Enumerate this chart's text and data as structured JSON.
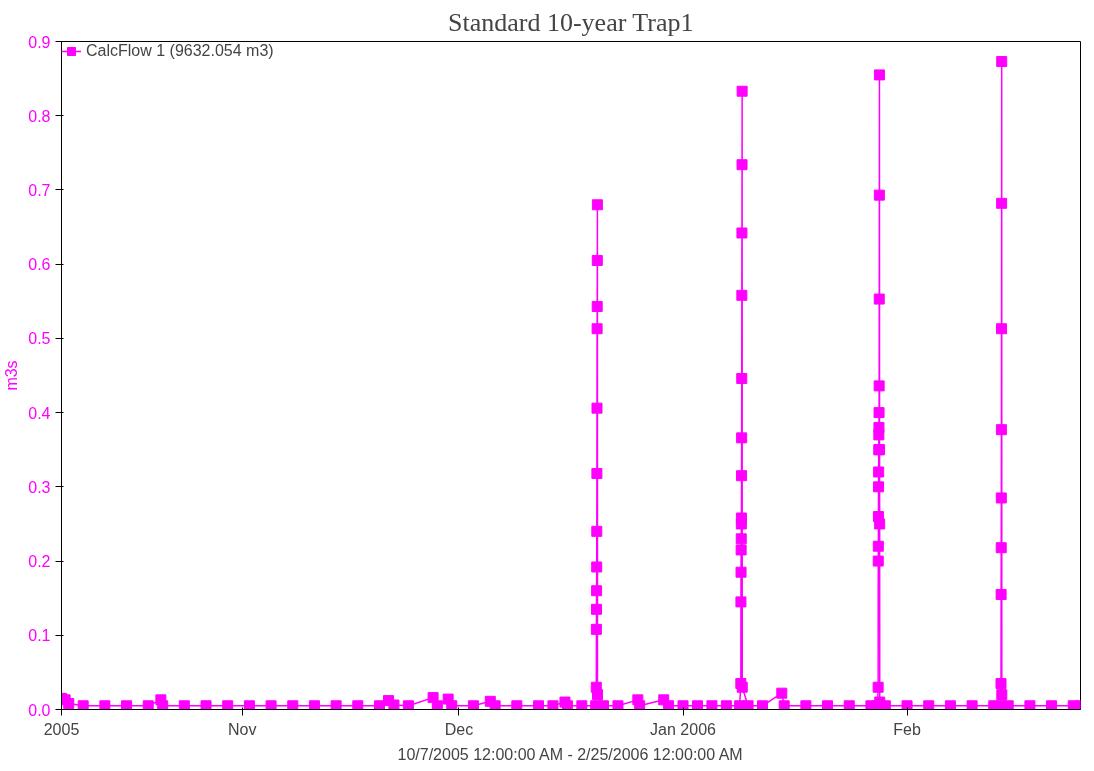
{
  "chart_data": {
    "type": "line",
    "title": "Standard 10-year Trap1",
    "xlabel": "10/7/2005 12:00:00 AM - 2/25/2006 12:00:00 AM",
    "ylabel": "m3s",
    "xlim": [
      "2005-10-07",
      "2006-02-25"
    ],
    "xticks": [
      {
        "value": "2005-10-07",
        "label": "2005"
      },
      {
        "value": "2005-11-01",
        "label": "Nov"
      },
      {
        "value": "2005-12-01",
        "label": "Dec"
      },
      {
        "value": "2006-01-01",
        "label": "Jan 2006"
      },
      {
        "value": "2006-02-01",
        "label": "Feb"
      }
    ],
    "ylim": [
      0,
      0.9
    ],
    "yticks": [
      {
        "value": 0,
        "label": "0.0"
      },
      0.1,
      0.2,
      0.3,
      0.4,
      0.5,
      0.6,
      0.7,
      0.8,
      0.9
    ],
    "grid": false,
    "legend": "top left",
    "marker": "square",
    "line_style": "solid",
    "series": [
      {
        "name": "CalcFlow 1 (9632.054 m3)",
        "color": "#ff00ff",
        "x": [
          "2005-10-07",
          "2005-10-07T12:00",
          "2005-10-08",
          "2005-10-10",
          "2005-10-13",
          "2005-10-16",
          "2005-10-19",
          "2005-10-20T18:00",
          "2005-10-21",
          "2005-10-24",
          "2005-10-27",
          "2005-10-30",
          "2005-11-02",
          "2005-11-05",
          "2005-11-08",
          "2005-11-11",
          "2005-11-14",
          "2005-11-17",
          "2005-11-20",
          "2005-11-21T06:00",
          "2005-11-22",
          "2005-11-24",
          "2005-11-27T10:00",
          "2005-11-28",
          "2005-11-29T12:00",
          "2005-11-30",
          "2005-12-03",
          "2005-12-05T08:00",
          "2005-12-06",
          "2005-12-09",
          "2005-12-12",
          "2005-12-14",
          "2005-12-15T16:00",
          "2005-12-16",
          "2005-12-18",
          "2005-12-19T22:00",
          "2005-12-20T00:00",
          "2005-12-20T00:20",
          "2005-12-20T00:40",
          "2005-12-20T01:00",
          "2005-12-20T01:20",
          "2005-12-20T01:40",
          "2005-12-20T02:00",
          "2005-12-20T02:20",
          "2005-12-20T02:40",
          "2005-12-20T03:00",
          "2005-12-20T03:20",
          "2005-12-20T03:40",
          "2005-12-20T04:00",
          "2005-12-21",
          "2005-12-23",
          "2005-12-25T18:00",
          "2005-12-26",
          "2005-12-29T08:00",
          "2005-12-30",
          "2006-01-01",
          "2006-01-03",
          "2006-01-05",
          "2006-01-07",
          "2006-01-08T20:00",
          "2006-01-09T00:00",
          "2006-01-09T00:20",
          "2006-01-09T00:40",
          "2006-01-09T01:00",
          "2006-01-09T01:20",
          "2006-01-09T01:40",
          "2006-01-09T02:00",
          "2006-01-09T02:20",
          "2006-01-09T02:40",
          "2006-01-09T03:00",
          "2006-01-09T03:20",
          "2006-01-09T03:40",
          "2006-01-09T04:00",
          "2006-01-09T04:20",
          "2006-01-09T04:40",
          "2006-01-10",
          "2006-01-12",
          "2006-01-14T16:00",
          "2006-01-15",
          "2006-01-18",
          "2006-01-21",
          "2006-01-24",
          "2006-01-27",
          "2006-01-27T22:00",
          "2006-01-28T00:00",
          "2006-01-28T00:20",
          "2006-01-28T00:40",
          "2006-01-28T01:00",
          "2006-01-28T01:20",
          "2006-01-28T01:40",
          "2006-01-28T02:00",
          "2006-01-28T02:20",
          "2006-01-28T02:40",
          "2006-01-28T03:00",
          "2006-01-28T03:20",
          "2006-01-28T03:40",
          "2006-01-28T04:00",
          "2006-01-28T04:20",
          "2006-01-28T04:40",
          "2006-01-28T05:00",
          "2006-01-28T05:20",
          "2006-01-29",
          "2006-02-01",
          "2006-02-04",
          "2006-02-07",
          "2006-02-10",
          "2006-02-13",
          "2006-02-13T22:00",
          "2006-02-14T00:00",
          "2006-02-14T00:20",
          "2006-02-14T00:40",
          "2006-02-14T01:00",
          "2006-02-14T01:20",
          "2006-02-14T01:40",
          "2006-02-14T02:00",
          "2006-02-14T02:20",
          "2006-02-14T02:40",
          "2006-02-15",
          "2006-02-18",
          "2006-02-21",
          "2006-02-24",
          "2006-02-25"
        ],
        "values": [
          0.015,
          0.013,
          0.008,
          0.005,
          0.005,
          0.005,
          0.005,
          0.013,
          0.005,
          0.005,
          0.005,
          0.005,
          0.005,
          0.005,
          0.005,
          0.005,
          0.005,
          0.005,
          0.005,
          0.012,
          0.006,
          0.005,
          0.016,
          0.005,
          0.014,
          0.005,
          0.005,
          0.011,
          0.005,
          0.005,
          0.005,
          0.005,
          0.01,
          0.005,
          0.005,
          0.005,
          0.03,
          0.108,
          0.135,
          0.16,
          0.192,
          0.24,
          0.318,
          0.406,
          0.513,
          0.543,
          0.605,
          0.68,
          0.02,
          0.005,
          0.005,
          0.013,
          0.005,
          0.013,
          0.005,
          0.005,
          0.005,
          0.005,
          0.005,
          0.005,
          0.035,
          0.145,
          0.185,
          0.215,
          0.23,
          0.25,
          0.258,
          0.315,
          0.366,
          0.446,
          0.558,
          0.642,
          0.734,
          0.833,
          0.03,
          0.005,
          0.005,
          0.022,
          0.005,
          0.005,
          0.005,
          0.005,
          0.005,
          0.005,
          0.03,
          0.2,
          0.22,
          0.26,
          0.3,
          0.32,
          0.35,
          0.37,
          0.38,
          0.4,
          0.436,
          0.553,
          0.693,
          0.855,
          0.35,
          0.25,
          0.01,
          0.005,
          0.005,
          0.005,
          0.005,
          0.005,
          0.005,
          0.005,
          0.035,
          0.155,
          0.218,
          0.285,
          0.377,
          0.513,
          0.682,
          0.873,
          0.02,
          0.005,
          0.005,
          0.005,
          0.005,
          0.005
        ]
      }
    ]
  }
}
